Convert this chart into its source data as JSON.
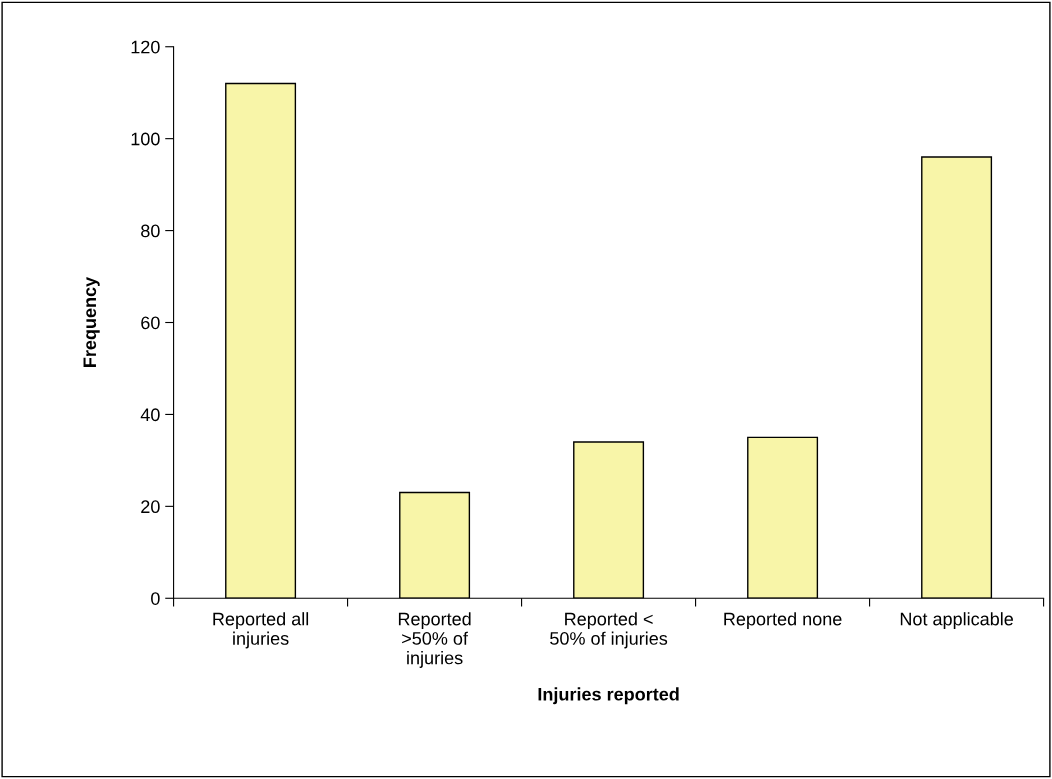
{
  "chart_data": {
    "type": "bar",
    "xlabel": "Injuries reported",
    "ylabel": "Frequency",
    "categories": [
      "Reported all\ninjuries",
      "Reported\n>50% of\ninjuries",
      "Reported <\n50% of injuries",
      "Reported none",
      "Not applicable"
    ],
    "values": [
      112,
      23,
      34,
      35,
      96
    ],
    "color": "#f8f5a8",
    "ylim": [
      0,
      120
    ],
    "yticks": [
      0,
      20,
      40,
      60,
      80,
      100,
      120
    ],
    "grid": false,
    "legend": false
  }
}
